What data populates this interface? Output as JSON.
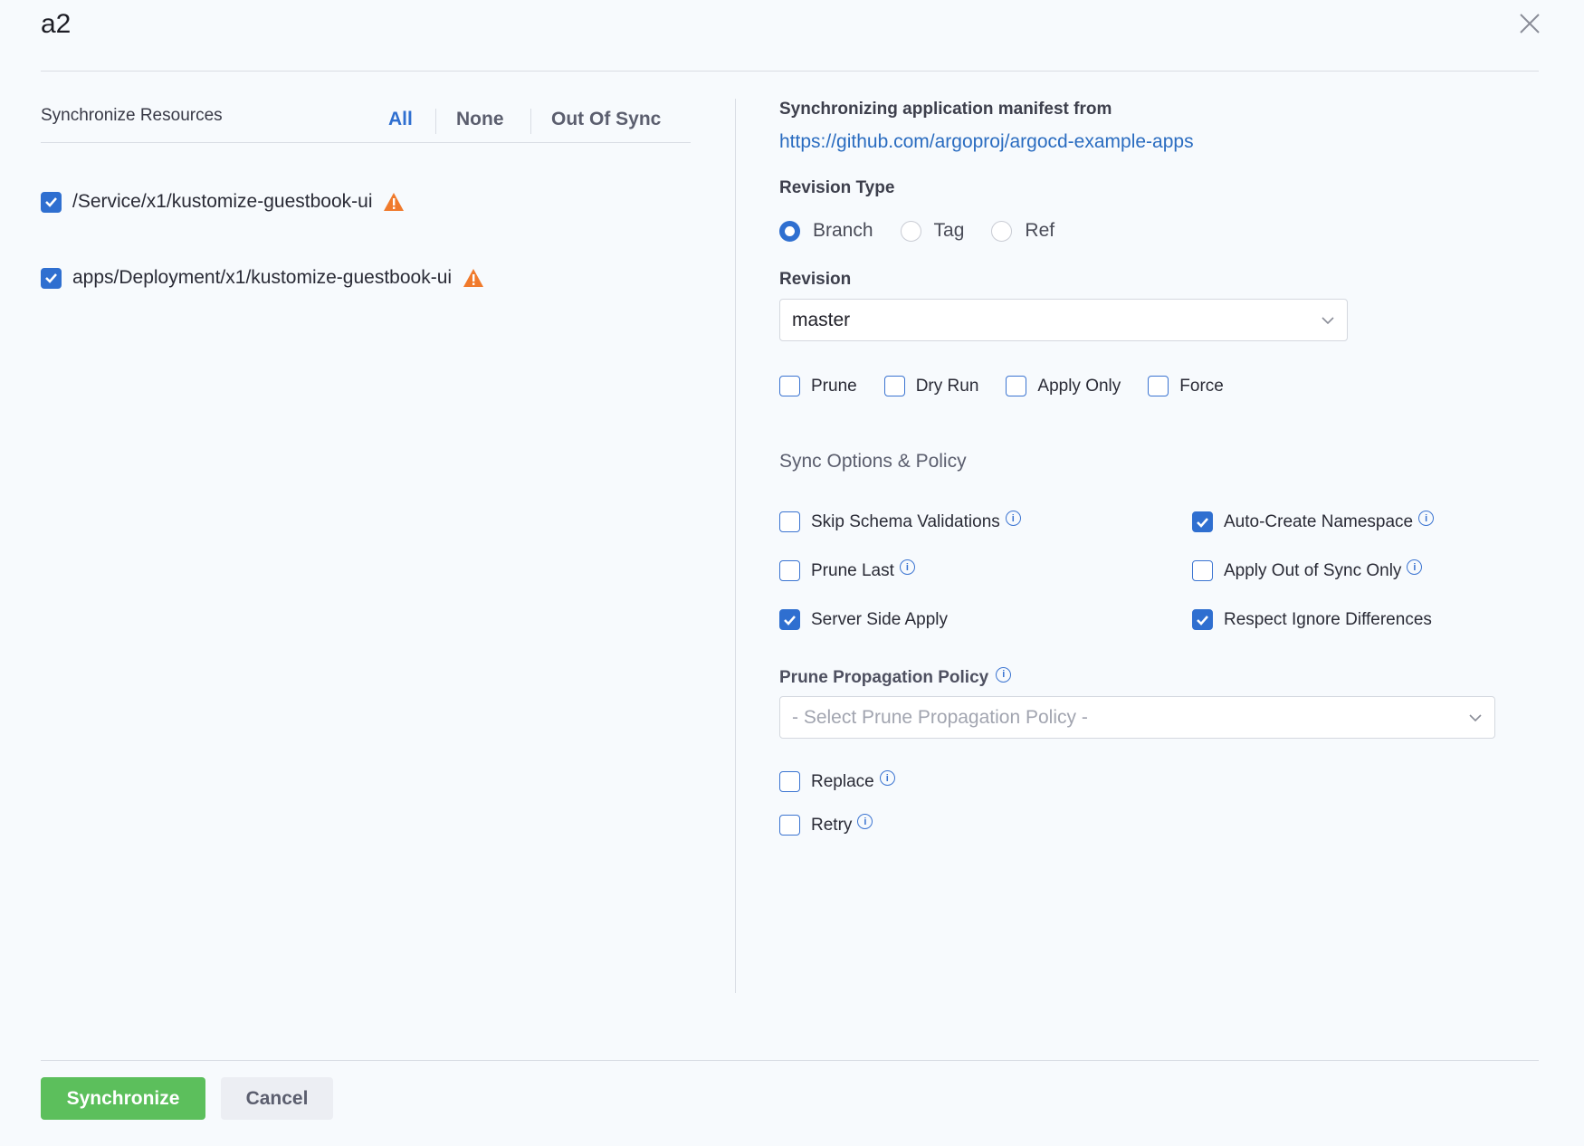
{
  "title": "a2",
  "left": {
    "heading": "Synchronize Resources",
    "tabs": [
      {
        "label": "All",
        "active": true
      },
      {
        "label": "None"
      },
      {
        "label": "Out Of Sync"
      }
    ],
    "resources": [
      {
        "label": "/Service/x1/kustomize-guestbook-ui",
        "checked": true,
        "status": "warning-icon"
      },
      {
        "label": "apps/Deployment/x1/kustomize-guestbook-ui",
        "checked": true,
        "status": "warning-icon"
      }
    ]
  },
  "right": {
    "manifest_label": "Synchronizing application manifest from",
    "manifest_url": "https://github.com/argoproj/argocd-example-apps",
    "revision_type_label": "Revision Type",
    "revision_types": [
      {
        "label": "Branch",
        "selected": true
      },
      {
        "label": "Tag"
      },
      {
        "label": "Ref"
      }
    ],
    "revision_label": "Revision",
    "revision_value": "master",
    "flags": [
      {
        "label": "Prune"
      },
      {
        "label": "Dry Run"
      },
      {
        "label": "Apply Only"
      },
      {
        "label": "Force"
      }
    ],
    "sync_options_heading": "Sync Options & Policy",
    "options": [
      {
        "label": "Skip Schema Validations",
        "checked": false,
        "info": true
      },
      {
        "label": "Auto-Create Namespace",
        "checked": true,
        "info": true
      },
      {
        "label": "Prune Last",
        "checked": false,
        "info": true
      },
      {
        "label": "Apply Out of Sync Only",
        "checked": false,
        "info": true
      },
      {
        "label": "Server Side Apply",
        "checked": true,
        "info": false
      },
      {
        "label": "Respect Ignore Differences",
        "checked": true,
        "info": false
      }
    ],
    "prune_policy_label": "Prune Propagation Policy",
    "prune_policy_placeholder": "- Select Prune Propagation Policy -",
    "replace_label": "Replace",
    "retry_label": "Retry"
  },
  "footer": {
    "synchronize": "Synchronize",
    "cancel": "Cancel"
  },
  "colors": {
    "accent": "#2f6fd0",
    "primary_button": "#5cbf5c",
    "warning": "#f07a2c"
  }
}
